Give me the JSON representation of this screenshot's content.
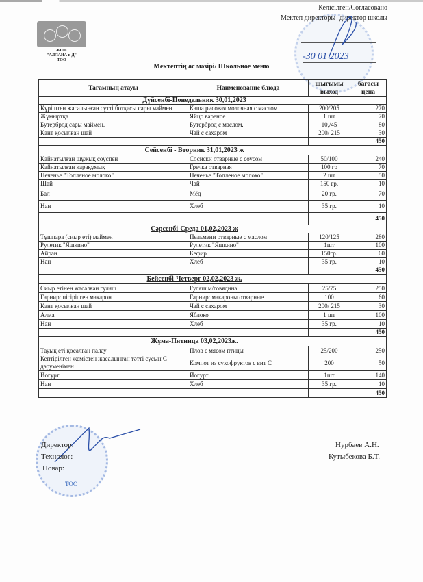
{
  "logo": {
    "line1": "ЖШС",
    "line2": "\"АЛЛАНА и Д\"",
    "line3": "ТОО"
  },
  "approval": {
    "line1": "Келісілген/Согласовано",
    "line2": "Мектеп директоры- директор школы",
    "date": "-30  01  2023"
  },
  "title": "Мектептің ас мәзірі/ Школьное меню",
  "headers": {
    "kz": "Тағамның атауы",
    "ru": "Наименование блюда",
    "yield_kz": "шығымы",
    "yield_ru": "выход",
    "price_kz": "бағасы",
    "price_ru": "цена"
  },
  "days": [
    {
      "label": "Дүйсенбі-Понедельник 30,01,2023",
      "underline": false,
      "items": [
        {
          "kz": "Күріштен  жасалынған сүтті ботқасы сары маймен",
          "ru": "Каша рисовая молочная с маслом",
          "yield": "200/205",
          "price": "270"
        },
        {
          "kz": "Жұмыртқа",
          "ru": "Яйцо  вареное",
          "yield": "1 шт",
          "price": "70"
        },
        {
          "kz": "Бутерброд сары маймен.",
          "ru": "Бутерброд с маслом.",
          "yield": "10,/45",
          "price": "80"
        },
        {
          "kz": "Қант қосылған шай",
          "ru": "Чай с сахаром",
          "yield": "200/ 215",
          "price": "30"
        }
      ],
      "total": "450"
    },
    {
      "label": "Сейсенбі - Вторник 31,01,2023 ж",
      "underline": true,
      "items": [
        {
          "kz": "Қайнатылған шұжық  соуспен",
          "ru": "Сосиски отварные с соусом",
          "yield": "50/100",
          "price": "240"
        },
        {
          "kz": "Қайнатылған қарақұмық",
          "ru": "Гречка отварная",
          "yield": "100 гр",
          "price": "70"
        },
        {
          "kz": "Печенье \"Топленое молоко\"",
          "ru": "Печенье \"Топленое молоко\"",
          "yield": "2 шт",
          "price": "50"
        },
        {
          "kz": "Шай",
          "ru": "Чай",
          "yield": "150 гр.",
          "price": "10"
        },
        {
          "kz": "Бал",
          "ru": "Мёд",
          "yield": "20 гр.",
          "price": "70"
        },
        {
          "kz": "Нан",
          "ru": "Хлеб",
          "yield": "35 гр.",
          "price": "10"
        }
      ],
      "total": "450"
    },
    {
      "label": "Сәрсенбі-Среда  01,02,2023 ж",
      "underline": true,
      "items": [
        {
          "kz": "Тұшпара (сиыр еті) маймен",
          "ru": "Пельмени отварные с маслом",
          "yield": "120/125",
          "price": "280"
        },
        {
          "kz": "Рулетик \"Яшкино\"",
          "ru": "Рулетик \"Яшкино\"",
          "yield": "1шт",
          "price": "100"
        },
        {
          "kz": "Айран",
          "ru": "Кефир",
          "yield": "150гр.",
          "price": "60"
        },
        {
          "kz": "Нан",
          "ru": "Хлеб",
          "yield": "35 гр.",
          "price": "10"
        }
      ],
      "total": "450"
    },
    {
      "label": "Бейсенбі-Четверг 02,02,2023 ж.",
      "underline": true,
      "items": [
        {
          "kz": "Сиыр етінен жасалған гуляш",
          "ru": "Гуляш м/говядина",
          "yield": "25/75",
          "price": "250"
        },
        {
          "kz": "Гарнир: пісірілген макарон",
          "ru": "Гарнир: макароны  отварные",
          "yield": "100",
          "price": "60"
        },
        {
          "kz": "Қант қосылған шай",
          "ru": "Чай с сахаром",
          "yield": "200/ 215",
          "price": "30"
        },
        {
          "kz": "Алма",
          "ru": "Яблоко",
          "yield": "1 шт",
          "price": "100"
        },
        {
          "kz": "Нан",
          "ru": "Хлеб",
          "yield": "35 гр.",
          "price": "10"
        }
      ],
      "total": "450"
    },
    {
      "label": "Жұма-Пятница 03,02,2023ж.",
      "underline": true,
      "items": [
        {
          "kz": "Тауық еті  қосалған палау",
          "ru": "Плов с мясом птицы",
          "yield": "25/200",
          "price": "250"
        },
        {
          "kz": "Кептірілген жемістен жасалынған тәтті сусын С дәруменімен",
          "ru": "Компот из сухофруктов с   вит С",
          "yield": "200",
          "price": "50"
        },
        {
          "kz": "Йогурт",
          "ru": "Йогурт",
          "yield": "1шт",
          "price": "140"
        },
        {
          "kz": "Нан",
          "ru": "Хлеб",
          "yield": "35 гр.",
          "price": "10"
        }
      ],
      "total": "450"
    }
  ],
  "signatures": {
    "director_label": "Директор:",
    "technologist_label": "Технолог:",
    "cook_label": "Повар:",
    "director_name": "Нурбаев А.Н.",
    "technologist_name": "Кутыбекова Б.Т."
  },
  "stamp_text": "ТОО"
}
